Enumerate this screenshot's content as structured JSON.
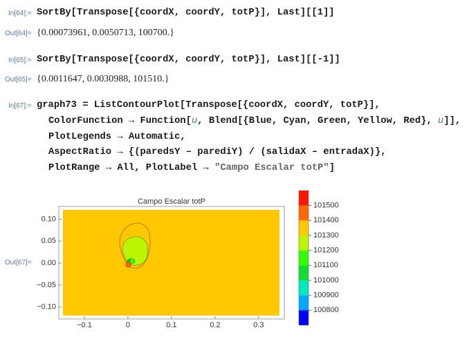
{
  "cells": [
    {
      "in_label": "In[64]:=",
      "input": [
        [
          "SortBy[Transpose[{coordX, coordY, totP}], Last][[1]]"
        ]
      ],
      "out_label": "Out[64]=",
      "output": "{0.00073961, 0.0050713, 100700.}"
    },
    {
      "in_label": "In[65]:=",
      "input": [
        [
          "SortBy[Transpose[{coordX, coordY, totP}], Last][[-1]]"
        ]
      ],
      "out_label": "Out[65]=",
      "output": "{0.0011647, 0.0030988, 101510.}"
    },
    {
      "in_label": "In[67]:=",
      "input": [
        [
          "graph73 = ListContourPlot[Transpose[{coordX, coordY, totP}],"
        ],
        [
          "ColorFunction → Function[",
          "u",
          ", Blend[{Blue, Cyan, Green, Yellow, Red}, ",
          "u",
          "]],"
        ],
        [
          "PlotLegends → Automatic,"
        ],
        [
          "AspectRatio → {(paredsY – parediY) / (salidaX – entradaX)},"
        ],
        [
          "PlotRange → All, PlotLabel → ",
          "\"Campo Escalar totP\"",
          "]"
        ]
      ],
      "out_label": "Out[67]="
    }
  ],
  "plot": {
    "type": "contour",
    "title": "Campo Escalar totP",
    "xlim": [
      -0.1587,
      0.359
    ],
    "xticks": [
      {
        "value": -0.1,
        "label": "−0.1"
      },
      0,
      0.1,
      0.2,
      0.3
    ],
    "ylim": [
      -0.127,
      0.129
    ],
    "yticks": [
      {
        "value": 0.1,
        "label": "0.10"
      },
      {
        "value": 0.05,
        "label": "0.05"
      },
      {
        "value": 0,
        "label": "0.00"
      },
      {
        "value": -0.05,
        "label": "−0.05"
      },
      {
        "value": -0.1,
        "label": "−0.10"
      }
    ],
    "levels": [
      100700,
      100800,
      100900,
      101000,
      101100,
      101200,
      101300,
      101400,
      101500,
      101600
    ],
    "colors": [
      "#0000ff",
      "#00aaff",
      "#00e8c0",
      "#11dd33",
      "#33ff00",
      "#bbf500",
      "#ffc800",
      "#ff6a00",
      "#ff1500"
    ],
    "legend_ticks": [
      100800,
      100900,
      101000,
      101100,
      101200,
      101300,
      101400,
      101500
    ]
  }
}
